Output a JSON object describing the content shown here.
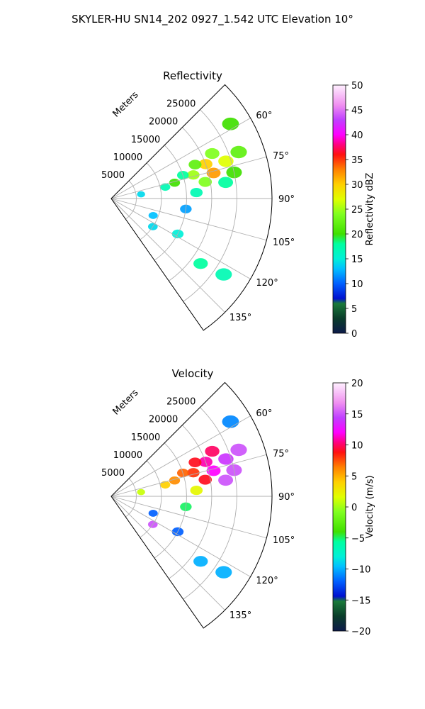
{
  "figure": {
    "title": "SKYLER-HU  SN14_202  0927_1.542 UTC Elevation 10°"
  },
  "chart_data": [
    {
      "type": "heatmap",
      "projection": "polar-sector",
      "title": "Reflectivity",
      "range_label": "Meters",
      "r_max": 32000,
      "r_ticks": [
        5000,
        10000,
        15000,
        20000,
        25000
      ],
      "r_tick_labels": [
        "5000",
        "10000",
        "15000",
        "20000",
        "25000"
      ],
      "theta_range_deg": [
        45,
        145
      ],
      "theta_ticks_deg": [
        60,
        75,
        90,
        105,
        120,
        135
      ],
      "theta_tick_labels": [
        "60°",
        "75°",
        "90°",
        "105°",
        "120°",
        "135°"
      ],
      "grid": true,
      "colorbar": {
        "label": "Reflectivity dBZ",
        "min": 0,
        "max": 50,
        "ticks": [
          0,
          5,
          10,
          15,
          20,
          25,
          30,
          35,
          40,
          45,
          50
        ],
        "tick_labels": [
          "0",
          "5",
          "10",
          "15",
          "20",
          "25",
          "30",
          "35",
          "40",
          "45",
          "50"
        ],
        "stops": [
          [
            0,
            "#0d1a4a"
          ],
          [
            0.06,
            "#0a3d2a"
          ],
          [
            0.12,
            "#1a7a3a"
          ],
          [
            0.14,
            "#0010d0"
          ],
          [
            0.2,
            "#0060ff"
          ],
          [
            0.26,
            "#00c0ff"
          ],
          [
            0.3,
            "#00f0d8"
          ],
          [
            0.36,
            "#00ffa0"
          ],
          [
            0.4,
            "#40e000"
          ],
          [
            0.48,
            "#80ff20"
          ],
          [
            0.54,
            "#e0ff00"
          ],
          [
            0.6,
            "#ffd000"
          ],
          [
            0.66,
            "#ff8000"
          ],
          [
            0.72,
            "#ff1010"
          ],
          [
            0.76,
            "#ff0080"
          ],
          [
            0.8,
            "#ff00ff"
          ],
          [
            0.86,
            "#c040ff"
          ],
          [
            0.92,
            "#f090f0"
          ],
          [
            1,
            "#fff0ff"
          ]
        ]
      },
      "echo_cells": [
        {
          "r": 22000,
          "theta": 66,
          "value": 24
        },
        {
          "r": 20000,
          "theta": 70,
          "value": 30
        },
        {
          "r": 24000,
          "theta": 72,
          "value": 27
        },
        {
          "r": 18000,
          "theta": 68,
          "value": 22
        },
        {
          "r": 17000,
          "theta": 74,
          "value": 25
        },
        {
          "r": 21000,
          "theta": 76,
          "value": 32
        },
        {
          "r": 25000,
          "theta": 78,
          "value": 20
        },
        {
          "r": 15000,
          "theta": 72,
          "value": 18
        },
        {
          "r": 13000,
          "theta": 76,
          "value": 20
        },
        {
          "r": 27000,
          "theta": 70,
          "value": 22
        },
        {
          "r": 28000,
          "theta": 58,
          "value": 20
        },
        {
          "r": 6000,
          "theta": 82,
          "value": 14
        },
        {
          "r": 11000,
          "theta": 78,
          "value": 17
        },
        {
          "r": 19000,
          "theta": 80,
          "value": 24
        },
        {
          "r": 23000,
          "theta": 82,
          "value": 18
        },
        {
          "r": 17000,
          "theta": 86,
          "value": 17
        },
        {
          "r": 15000,
          "theta": 98,
          "value": 12
        },
        {
          "r": 9000,
          "theta": 112,
          "value": 13
        },
        {
          "r": 15000,
          "theta": 118,
          "value": 15
        },
        {
          "r": 22000,
          "theta": 126,
          "value": 18
        },
        {
          "r": 27000,
          "theta": 124,
          "value": 17
        },
        {
          "r": 10000,
          "theta": 124,
          "value": 14
        }
      ]
    },
    {
      "type": "heatmap",
      "projection": "polar-sector",
      "title": "Velocity",
      "range_label": "Meters",
      "r_max": 32000,
      "r_ticks": [
        5000,
        10000,
        15000,
        20000,
        25000
      ],
      "r_tick_labels": [
        "5000",
        "10000",
        "15000",
        "20000",
        "25000"
      ],
      "theta_range_deg": [
        45,
        145
      ],
      "theta_ticks_deg": [
        60,
        75,
        90,
        105,
        120,
        135
      ],
      "theta_tick_labels": [
        "60°",
        "75°",
        "90°",
        "105°",
        "120°",
        "135°"
      ],
      "grid": true,
      "colorbar": {
        "label": "Velocity (m/s)",
        "min": -20,
        "max": 20,
        "ticks": [
          -20,
          -15,
          -10,
          -5,
          0,
          5,
          10,
          15,
          20
        ],
        "tick_labels": [
          "−20",
          "−15",
          "−10",
          "−5",
          "0",
          "5",
          "10",
          "15",
          "20"
        ],
        "stops": [
          [
            0,
            "#0d1a4a"
          ],
          [
            0.06,
            "#0a3d2a"
          ],
          [
            0.12,
            "#1a7a3a"
          ],
          [
            0.14,
            "#0010d0"
          ],
          [
            0.2,
            "#0060ff"
          ],
          [
            0.26,
            "#00c0ff"
          ],
          [
            0.3,
            "#00f0d8"
          ],
          [
            0.36,
            "#00ffa0"
          ],
          [
            0.4,
            "#40e000"
          ],
          [
            0.48,
            "#80ff20"
          ],
          [
            0.54,
            "#e0ff00"
          ],
          [
            0.6,
            "#ffd000"
          ],
          [
            0.66,
            "#ff8000"
          ],
          [
            0.72,
            "#ff1010"
          ],
          [
            0.76,
            "#ff0080"
          ],
          [
            0.8,
            "#ff00ff"
          ],
          [
            0.86,
            "#c040ff"
          ],
          [
            0.92,
            "#f090f0"
          ],
          [
            1,
            "#fff0ff"
          ]
        ]
      },
      "echo_cells": [
        {
          "r": 22000,
          "theta": 66,
          "value": 10
        },
        {
          "r": 20000,
          "theta": 70,
          "value": 11
        },
        {
          "r": 24000,
          "theta": 72,
          "value": 14
        },
        {
          "r": 18000,
          "theta": 68,
          "value": 9
        },
        {
          "r": 17000,
          "theta": 74,
          "value": 8
        },
        {
          "r": 21000,
          "theta": 76,
          "value": 12
        },
        {
          "r": 25000,
          "theta": 78,
          "value": 15
        },
        {
          "r": 15000,
          "theta": 72,
          "value": 7
        },
        {
          "r": 13000,
          "theta": 76,
          "value": 6
        },
        {
          "r": 27000,
          "theta": 70,
          "value": 15
        },
        {
          "r": 28000,
          "theta": 58,
          "value": -11
        },
        {
          "r": 6000,
          "theta": 82,
          "value": 1
        },
        {
          "r": 11000,
          "theta": 78,
          "value": 4
        },
        {
          "r": 19000,
          "theta": 80,
          "value": 9
        },
        {
          "r": 23000,
          "theta": 82,
          "value": 15
        },
        {
          "r": 17000,
          "theta": 86,
          "value": 2
        },
        {
          "r": 15000,
          "theta": 98,
          "value": -5
        },
        {
          "r": 9000,
          "theta": 112,
          "value": -12
        },
        {
          "r": 15000,
          "theta": 118,
          "value": -12
        },
        {
          "r": 22000,
          "theta": 126,
          "value": -10
        },
        {
          "r": 27000,
          "theta": 124,
          "value": -10
        },
        {
          "r": 10000,
          "theta": 124,
          "value": 15
        }
      ]
    }
  ]
}
